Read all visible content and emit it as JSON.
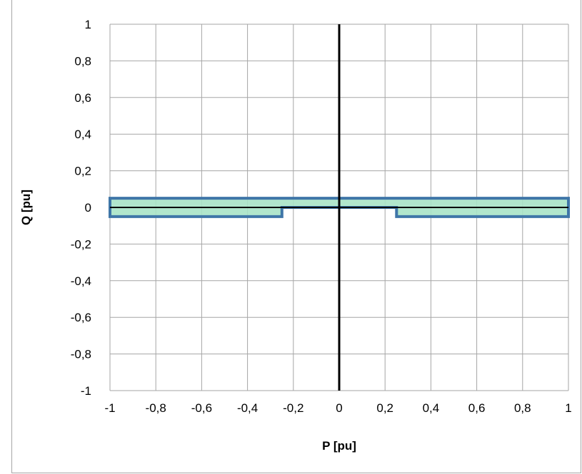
{
  "chart_data": {
    "type": "area",
    "title": "",
    "xlabel": "P [pu]",
    "ylabel": "Q [pu]",
    "xlim": [
      -1,
      1
    ],
    "ylim": [
      -1,
      1
    ],
    "x_ticks": [
      -1,
      -0.8,
      -0.6,
      -0.4,
      -0.2,
      0,
      0.2,
      0.4,
      0.6,
      0.8,
      1
    ],
    "y_ticks": [
      -1,
      -0.8,
      -0.6,
      -0.4,
      -0.2,
      0,
      0.2,
      0.4,
      0.6,
      0.8,
      1
    ],
    "x_tick_labels": [
      "-1",
      "-0,8",
      "-0,6",
      "-0,4",
      "-0,2",
      "0",
      "0,2",
      "0,4",
      "0,6",
      "0,8",
      "1"
    ],
    "y_tick_labels": [
      "-1",
      "-0,8",
      "-0,6",
      "-0,4",
      "-0,2",
      "0",
      "0,2",
      "0,4",
      "0,6",
      "0,8",
      "1"
    ],
    "grid": true,
    "legend": "none",
    "series": [
      {
        "outline_points": [
          [
            -1,
            0.05
          ],
          [
            1,
            0.05
          ],
          [
            1,
            -0.05
          ],
          [
            0.25,
            -0.05
          ],
          [
            0.25,
            0
          ],
          [
            -0.25,
            0
          ],
          [
            -0.25,
            -0.05
          ],
          [
            -1,
            -0.05
          ]
        ],
        "fill_color": "#a9e3c6",
        "stroke_color": "#3f76a8"
      }
    ],
    "axis_lines": [
      {
        "orientation": "vertical",
        "x": 0
      },
      {
        "orientation": "horizontal",
        "y": 0
      }
    ],
    "colors": {
      "grid": "#a6a6a6",
      "axis": "#000000",
      "frame": "#a6a6a6"
    }
  }
}
